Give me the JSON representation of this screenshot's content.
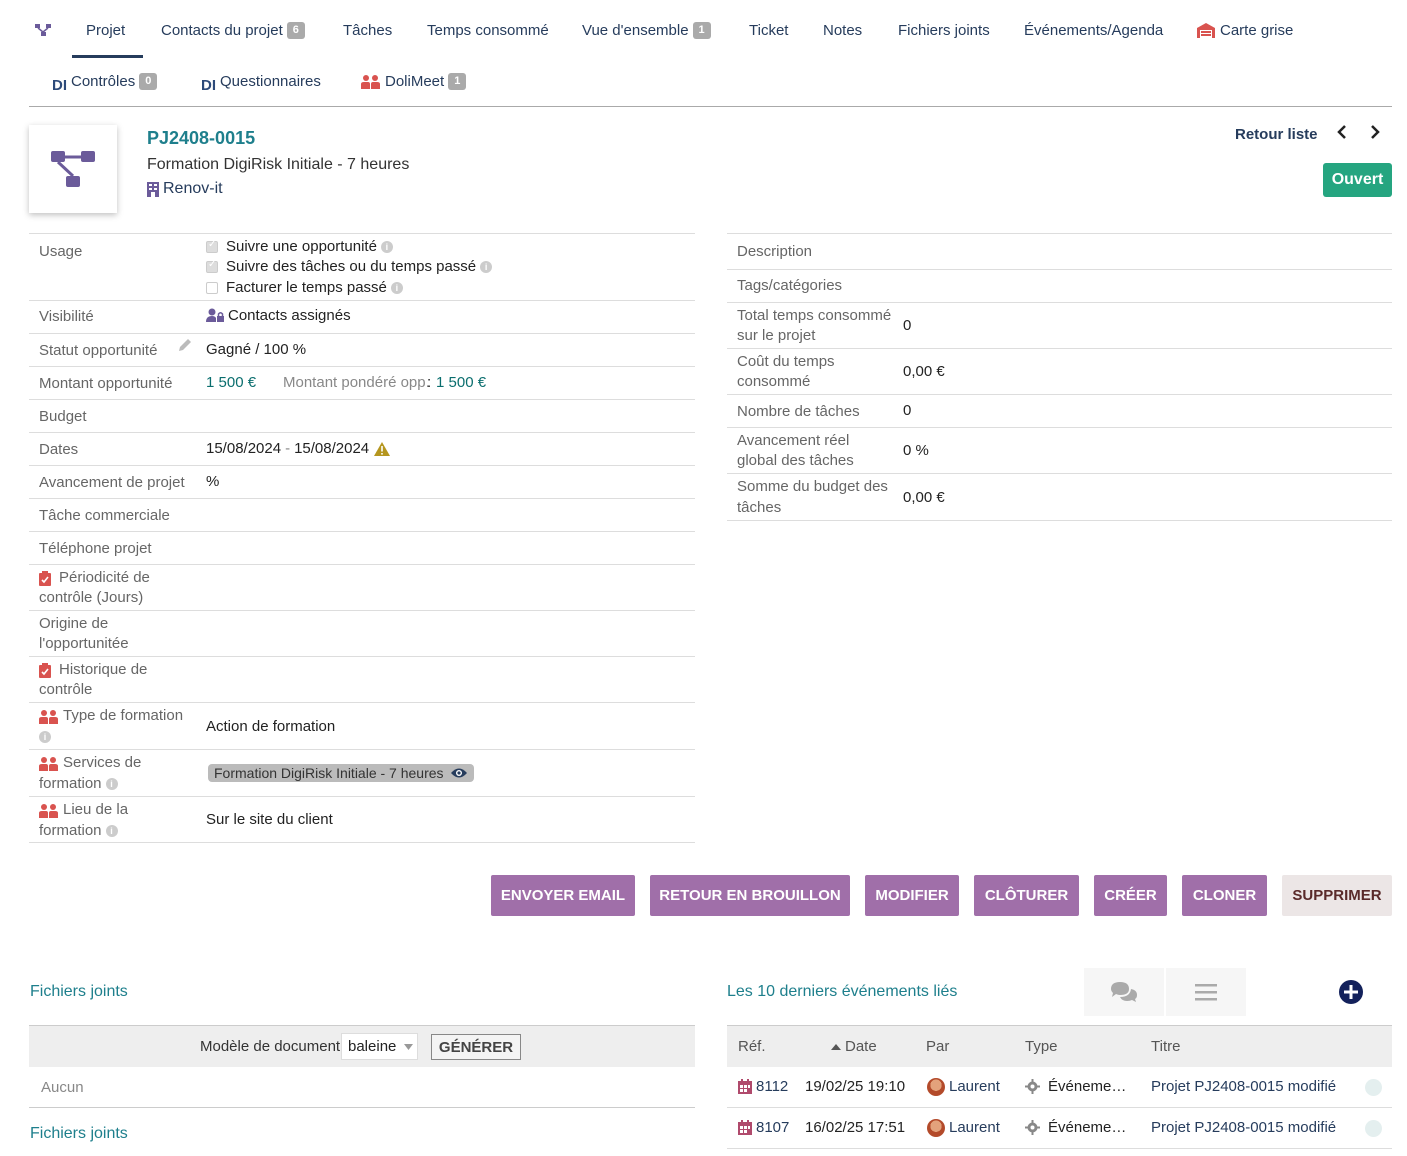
{
  "tabs": {
    "projet": "Projet",
    "contacts": "Contacts du projet",
    "contacts_count": "6",
    "taches": "Tâches",
    "temps": "Temps consommé",
    "vue": "Vue d'ensemble",
    "vue_count": "1",
    "ticket": "Ticket",
    "notes": "Notes",
    "fichiers": "Fichiers joints",
    "evenements": "Événements/Agenda",
    "carte": "Carte grise",
    "controles": "Contrôles",
    "controles_count": "0",
    "questionnaires": "Questionnaires",
    "dolimeet": "DoliMeet",
    "dolimeet_count": "1",
    "di_label": "DI"
  },
  "header": {
    "ref": "PJ2408-0015",
    "title": "Formation DigiRisk Initiale - 7 heures",
    "company": "Renov-it",
    "back_list": "Retour liste",
    "prev": "<",
    "next": ">",
    "status": "Ouvert"
  },
  "left_fields": {
    "usage_label": "Usage",
    "usage_opt1": "Suivre une opportunité",
    "usage_opt2": "Suivre des tâches ou du temps passé",
    "usage_opt3": "Facturer le temps passé",
    "visibilite_label": "Visibilité",
    "visibilite_value": "Contacts assignés",
    "statut_label": "Statut opportunité",
    "statut_value": "Gagné / 100 %",
    "montant_label": "Montant opportunité",
    "montant_value": "1 500 €",
    "pondere_label": "Montant pondéré opp.",
    "pondere_sep": ":",
    "pondere_value": "1 500 €",
    "budget_label": "Budget",
    "dates_label": "Dates",
    "date_start": "15/08/2024",
    "date_sep": "-",
    "date_end": "15/08/2024",
    "avancement_label": "Avancement de projet",
    "avancement_value": "%",
    "tache_comm_label": "Tâche commerciale",
    "telephone_label": "Téléphone projet",
    "periodicite_label_1": "Périodicité de",
    "periodicite_label_2": "contrôle (Jours)",
    "origine_label_1": "Origine de",
    "origine_label_2": "l'opportunitée",
    "historique_label_1": "Historique de",
    "historique_label_2": "contrôle",
    "type_form_label": "Type de formation",
    "type_form_value": "Action de formation",
    "services_label_1": "Services de",
    "services_label_2": "formation",
    "services_value": "Formation DigiRisk Initiale - 7 heures",
    "lieu_label_1": "Lieu de la",
    "lieu_label_2": "formation",
    "lieu_value": "Sur le site du client",
    "info_glyph": "i"
  },
  "right_fields": {
    "description_label": "Description",
    "tags_label": "Tags/catégories",
    "total_temps_label_1": "Total temps consommé",
    "total_temps_label_2": "sur le projet",
    "total_temps_value": "0",
    "cout_label_1": "Coût du temps",
    "cout_label_2": "consommé",
    "cout_value": "0,00 €",
    "nb_taches_label": "Nombre de tâches",
    "nb_taches_value": "0",
    "avanc_reel_label_1": "Avancement réel",
    "avanc_reel_label_2": "global des tâches",
    "avanc_reel_value": "0 %",
    "somme_label_1": "Somme du budget des",
    "somme_label_2": "tâches",
    "somme_value": "0,00 €"
  },
  "actions": {
    "email": "ENVOYER EMAIL",
    "brouillon": "RETOUR EN BROUILLON",
    "modifier": "MODIFIER",
    "cloturer": "CLÔTURER",
    "creer": "CRÉER",
    "cloner": "CLONER",
    "supprimer": "SUPPRIMER"
  },
  "files": {
    "title": "Fichiers joints",
    "model_label": "Modèle de document",
    "model_value": "baleine",
    "generate": "GÉNÉRER",
    "none": "Aucun",
    "title2": "Fichiers joints"
  },
  "events": {
    "title": "Les 10 derniers événements liés",
    "col_ref": "Réf.",
    "col_date": "Date",
    "col_par": "Par",
    "col_type": "Type",
    "col_titre": "Titre",
    "rows": [
      {
        "ref": "8112",
        "date": "19/02/25 19:10",
        "par": "Laurent",
        "type": "Événeme…",
        "titre": "Projet PJ2408-0015 modifié"
      },
      {
        "ref": "8107",
        "date": "16/02/25 17:51",
        "par": "Laurent",
        "type": "Événeme…",
        "titre": "Projet PJ2408-0015 modifié"
      }
    ]
  },
  "colors": {
    "accent": "#263c5c",
    "teal": "#1e7f8c",
    "status_green": "#25a580",
    "button_purple": "#a06fa9"
  }
}
